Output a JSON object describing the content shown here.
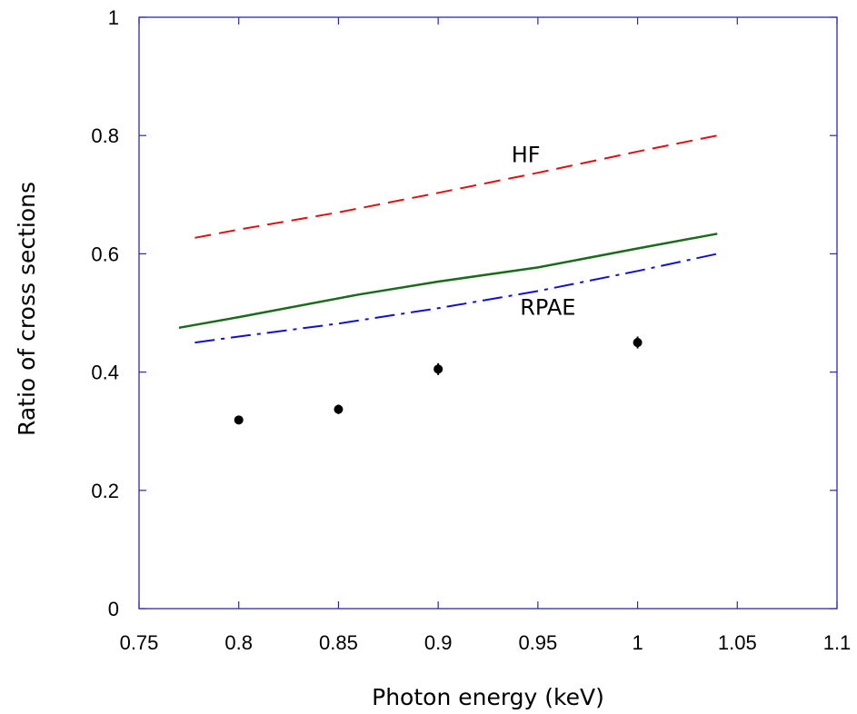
{
  "chart_data": {
    "type": "line",
    "title": "",
    "xlabel": "Photon energy (keV)",
    "ylabel": "Ratio of cross sections",
    "xlim": [
      0.75,
      1.1
    ],
    "ylim": [
      0,
      1
    ],
    "x_ticks": [
      0.75,
      0.8,
      0.85,
      0.9,
      0.95,
      1.0,
      1.05,
      1.1
    ],
    "x_tick_labels": [
      "0.75",
      "0.8",
      "0.85",
      "0.9",
      "0.95",
      "1",
      "1.05",
      "1.1"
    ],
    "y_ticks": [
      0,
      0.2,
      0.4,
      0.6,
      0.8,
      1.0
    ],
    "y_tick_labels": [
      "0",
      "0.2",
      "0.4",
      "0.6",
      "0.8",
      "1"
    ],
    "grid": false,
    "axis_color": "#2b2ba8",
    "series": [
      {
        "name": "HF",
        "style": "dashed",
        "color": "#dd1111",
        "x": [
          0.778,
          0.8,
          0.85,
          0.9,
          0.95,
          1.0,
          1.04
        ],
        "y": [
          0.627,
          0.641,
          0.67,
          0.703,
          0.737,
          0.773,
          0.8
        ]
      },
      {
        "name": "",
        "style": "solid",
        "color": "#1a6b1a",
        "x": [
          0.77,
          0.8,
          0.86,
          0.9,
          0.95,
          1.0,
          1.04
        ],
        "y": [
          0.475,
          0.493,
          0.531,
          0.553,
          0.577,
          0.609,
          0.634
        ]
      },
      {
        "name": "RPAE",
        "style": "dash-dot",
        "color": "#1111cc",
        "x": [
          0.778,
          0.8,
          0.85,
          0.9,
          0.95,
          1.0,
          1.04
        ],
        "y": [
          0.45,
          0.46,
          0.482,
          0.508,
          0.537,
          0.571,
          0.6
        ]
      }
    ],
    "points": {
      "color": "#000000",
      "x": [
        0.8,
        0.85,
        0.9,
        1.0
      ],
      "y": [
        0.319,
        0.337,
        0.405,
        0.45
      ],
      "err": [
        0.004,
        0.008,
        0.01,
        0.01
      ]
    },
    "annotations": [
      {
        "text": "HF",
        "x": 0.944,
        "y": 0.755
      },
      {
        "text": "RPAE",
        "x": 0.955,
        "y": 0.497
      }
    ]
  }
}
